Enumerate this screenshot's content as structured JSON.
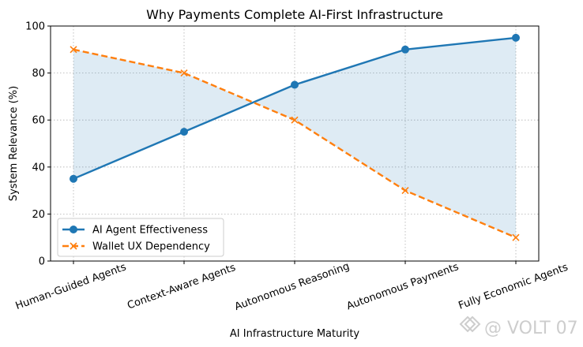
{
  "chart_data": {
    "type": "line",
    "title": "Why Payments Complete AI-First Infrastructure",
    "xlabel": "AI Infrastructure Maturity",
    "ylabel": "System Relevance (%)",
    "categories": [
      "Human-Guided Agents",
      "Context-Aware Agents",
      "Autonomous Reasoning",
      "Autonomous Payments",
      "Fully Economic Agents"
    ],
    "series": [
      {
        "name": "AI Agent Effectiveness",
        "values": [
          35,
          55,
          75,
          90,
          95
        ],
        "color": "#1f77b4",
        "line_style": "solid",
        "marker": "circle"
      },
      {
        "name": "Wallet UX Dependency",
        "values": [
          90,
          80,
          60,
          30,
          10
        ],
        "color": "#ff7f0e",
        "line_style": "dashed",
        "marker": "x"
      }
    ],
    "fill_between": {
      "series": [
        0,
        1
      ],
      "color": "#1f77b4",
      "opacity": 0.15
    },
    "ylim": [
      0,
      100
    ],
    "yticks": [
      0,
      20,
      40,
      60,
      80,
      100
    ],
    "grid": true,
    "grid_style": "dotted",
    "legend_position": "lower-left"
  },
  "watermark": {
    "text": "@ VOLT 07",
    "icon": "volt-logo-icon"
  }
}
